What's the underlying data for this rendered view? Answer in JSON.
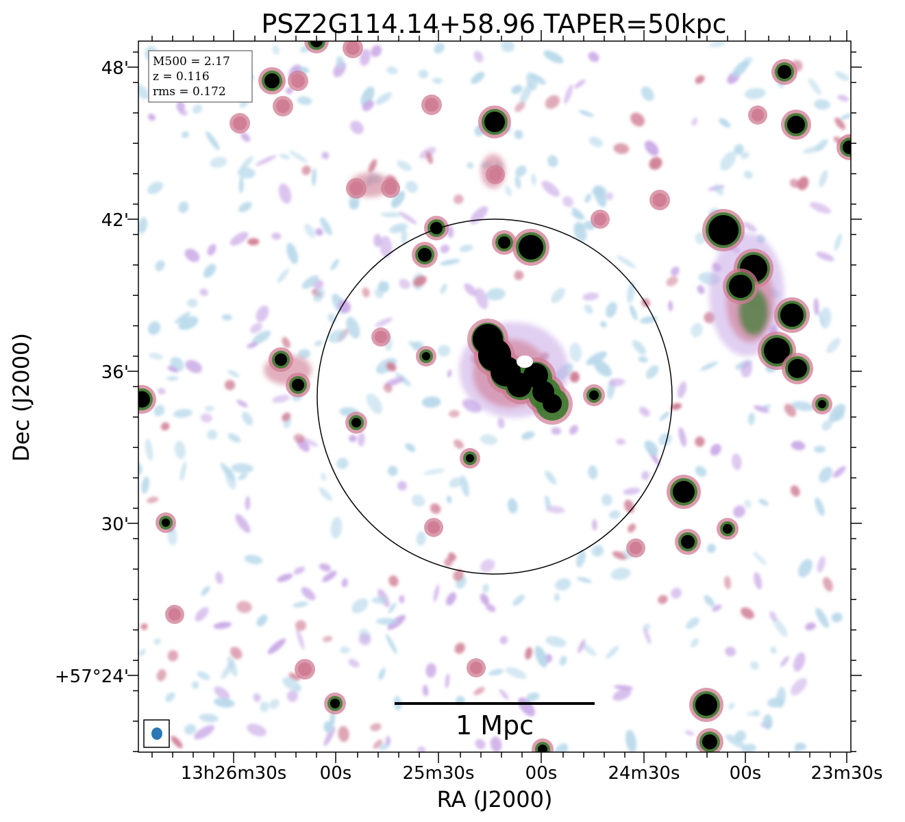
{
  "figure": {
    "title": "PSZ2G114.14+58.96 TAPER=50kpc",
    "xlabel": "RA (J2000)",
    "ylabel": "Dec (J2000)"
  },
  "ra_ticks": [
    "13h26m30s",
    "00s",
    "25m30s",
    "00s",
    "24m30s",
    "00s",
    "23m30s"
  ],
  "dec_ticks": [
    "48'",
    "42'",
    "36'",
    "30'",
    "+57°24'"
  ],
  "info_box": {
    "lines": [
      "M500 = 2.17",
      "z = 0.116",
      "rms = 0.172"
    ]
  },
  "scale_bar": {
    "label": "1 Mpc"
  },
  "colors": {
    "faint": "#b7d8ea",
    "low": "#c9a8e6",
    "mid": "#cf7b92",
    "high": "#3b7a2e",
    "saturated": "#000000",
    "beam": "#2b78b5"
  }
}
